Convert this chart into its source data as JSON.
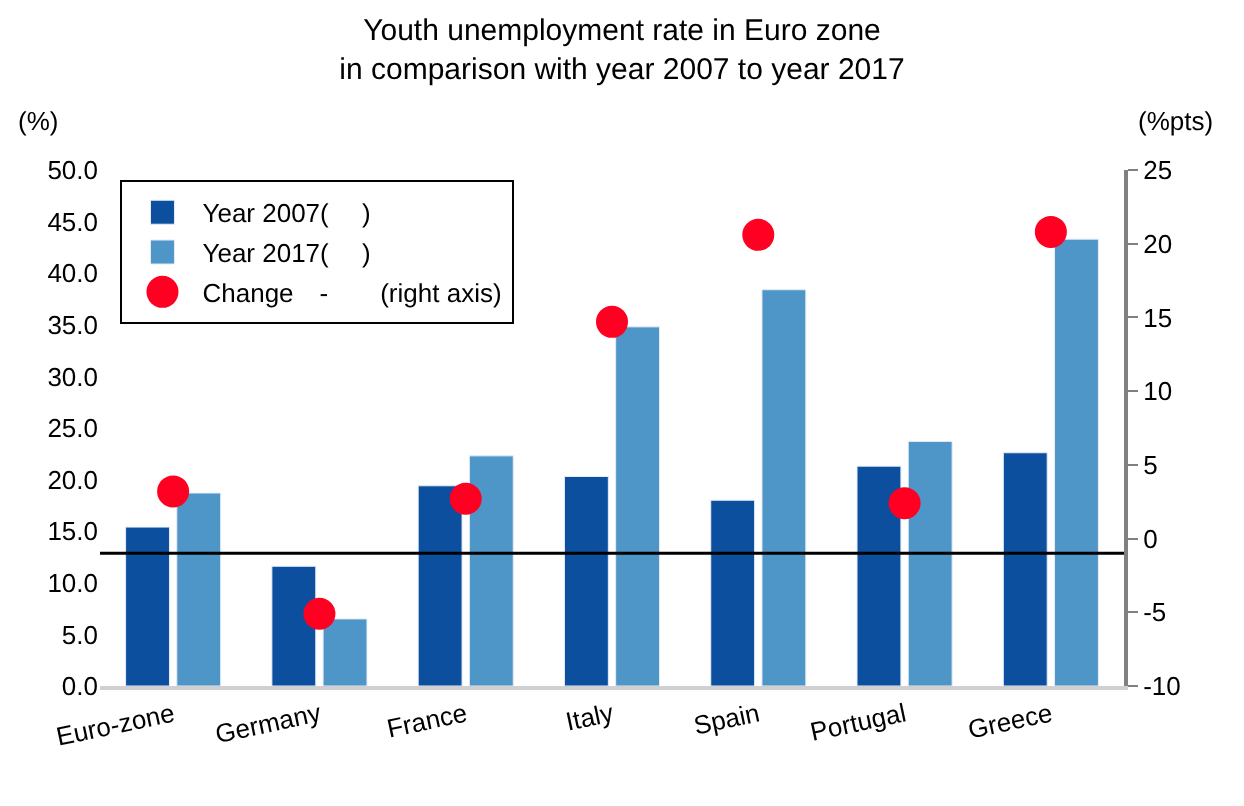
{
  "chart_data": {
    "type": "bar",
    "title": "Youth unemployment rate in Euro zone\nin comparison with year 2007 to year 2017",
    "ylabel": "(%)",
    "y2label": "(%pts)",
    "categories": [
      "Euro-zone",
      "Germany",
      "France",
      "Italy",
      "Spain",
      "Portugal",
      "Greece"
    ],
    "series": [
      {
        "name": "Year 2007(　 )",
        "color": "#0b4f9e",
        "values": [
          15.4,
          11.6,
          19.4,
          20.3,
          18.0,
          21.3,
          22.6
        ]
      },
      {
        "name": "Year 2017(　 )",
        "color": "#4f96c8",
        "values": [
          18.7,
          6.5,
          22.3,
          34.8,
          38.4,
          23.7,
          43.3
        ]
      },
      {
        "name": "Change　-　　(right axis)",
        "type": "scatter",
        "axis": "y2",
        "marker": "circle",
        "color": "#ff0022",
        "values": [
          3.2,
          -5.1,
          2.7,
          14.7,
          20.6,
          2.4,
          20.8
        ]
      }
    ],
    "ylim": [
      0,
      50
    ],
    "yticks": [
      {
        "value": 0,
        "label": "0.0"
      },
      {
        "value": 5,
        "label": "5.0"
      },
      {
        "value": 10,
        "label": "10.0"
      },
      {
        "value": 15,
        "label": "15.0"
      },
      {
        "value": 20,
        "label": "20.0"
      },
      {
        "value": 25,
        "label": "25.0"
      },
      {
        "value": 30,
        "label": "30.0"
      },
      {
        "value": 35,
        "label": "35.0"
      },
      {
        "value": 40,
        "label": "40.0"
      },
      {
        "value": 45,
        "label": "45.0"
      },
      {
        "value": 50,
        "label": "50.0"
      }
    ],
    "y2lim": [
      -10,
      25
    ],
    "y2ticks": [
      -10,
      -5,
      0,
      5,
      10,
      15,
      20,
      25
    ],
    "ref_lines": [
      {
        "axis": "y2",
        "value": -1,
        "color": "#000000"
      }
    ],
    "legend": "top left"
  }
}
